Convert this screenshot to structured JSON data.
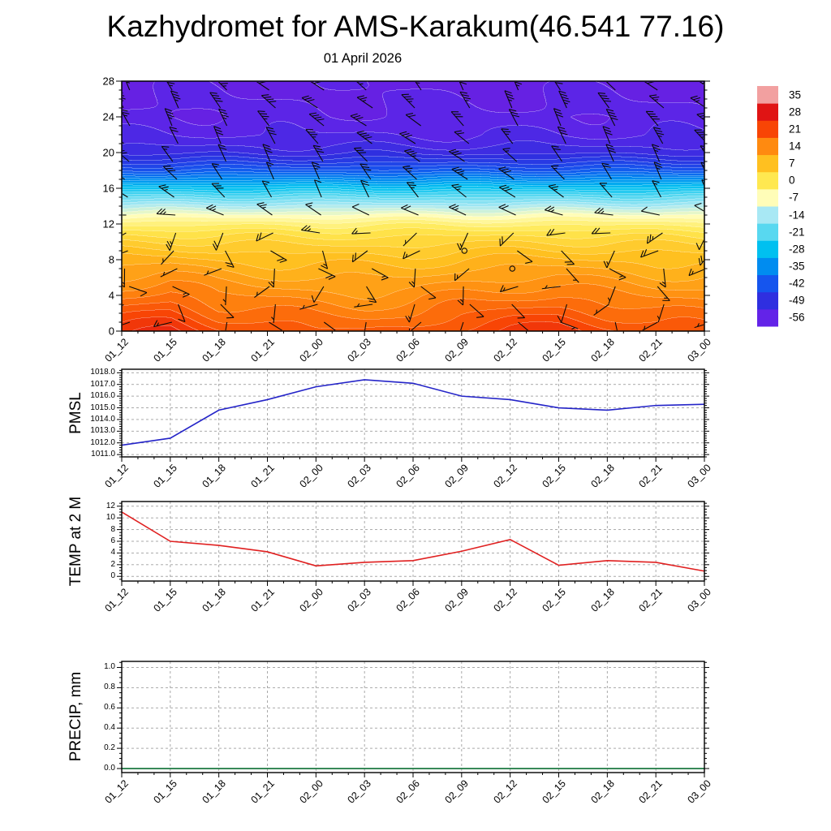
{
  "page": {
    "title": "Kazhydromet for AMS-Karakum(46.541 77.16)",
    "subtitle": "01 April 2026"
  },
  "time_labels": [
    "01_12",
    "01_15",
    "01_18",
    "01_21",
    "02_00",
    "02_03",
    "02_06",
    "02_09",
    "02_12",
    "02_15",
    "02_18",
    "02_21",
    "03_00"
  ],
  "chart_data": [
    {
      "type": "heatmap",
      "title": "01 April 2026",
      "description": "Time-height temperature cross-section with overlaid wind barbs and white contour lines",
      "x_categories": [
        "01_12",
        "01_15",
        "01_18",
        "01_21",
        "02_00",
        "02_03",
        "02_06",
        "02_09",
        "02_12",
        "02_15",
        "02_18",
        "02_21",
        "03_00"
      ],
      "ylim": [
        0,
        28
      ],
      "yticks": [
        0,
        4,
        8,
        12,
        16,
        20,
        24,
        28
      ],
      "units": "degC",
      "profile_heights": [
        0,
        1,
        2,
        3,
        4,
        5,
        6,
        7,
        8,
        9,
        10,
        11,
        12,
        13,
        14,
        15,
        16,
        17,
        18,
        19,
        20,
        21,
        22,
        24,
        26,
        28
      ],
      "profile_temps": [
        19.5,
        18,
        16.5,
        15,
        13.5,
        12,
        10.5,
        9,
        7.5,
        5.5,
        3.5,
        1,
        -2.5,
        -7.5,
        -13.5,
        -20,
        -27,
        -34.5,
        -41.5,
        -46.5,
        -50.5,
        -52.5,
        -54,
        -55.5,
        -56,
        -56.5
      ],
      "surface_anomaly": [
        3.5,
        5,
        1,
        0,
        -1,
        -1.5,
        -1,
        1.5,
        3,
        3.5,
        1.5,
        0,
        -0.5
      ],
      "contour_interval": 2,
      "wind_barbs": true,
      "calm_points": [
        [
          7,
          9
        ],
        [
          8,
          7
        ]
      ],
      "colorbar": {
        "tick_labels": [
          35,
          28,
          21,
          14,
          7,
          0,
          -7,
          -14,
          -21,
          -28,
          -35,
          -42,
          -49,
          -56
        ],
        "range": [
          -59.5,
          38.5
        ],
        "band_step": 7,
        "stops": [
          [
            -63,
            "#7a12c8"
          ],
          [
            -56,
            "#6323e8"
          ],
          [
            -49,
            "#2f2fe0"
          ],
          [
            -42,
            "#1555ee"
          ],
          [
            -35,
            "#008cf0"
          ],
          [
            -28,
            "#00c0f0"
          ],
          [
            -21,
            "#58d8f0"
          ],
          [
            -14,
            "#a8e8f4"
          ],
          [
            -7,
            "#fffdb8"
          ],
          [
            0,
            "#ffe850"
          ],
          [
            7,
            "#ffc020"
          ],
          [
            14,
            "#ff8a10"
          ],
          [
            21,
            "#f84505"
          ],
          [
            28,
            "#e01414"
          ],
          [
            35,
            "#f2a0a0"
          ],
          [
            42,
            "#f7d0d0"
          ]
        ]
      }
    },
    {
      "type": "line",
      "ylabel": "PMSL",
      "line_color": "#2424c8",
      "x": [
        "01_12",
        "01_15",
        "01_18",
        "01_21",
        "02_00",
        "02_03",
        "02_06",
        "02_09",
        "02_12",
        "02_15",
        "02_18",
        "02_21",
        "03_00"
      ],
      "values": [
        1011.8,
        1012.4,
        1014.8,
        1015.7,
        1016.8,
        1017.4,
        1017.1,
        1016.0,
        1015.7,
        1015.0,
        1014.8,
        1015.2,
        1015.3
      ],
      "ylim": [
        1010.8,
        1018.3
      ],
      "yticks": [
        1011,
        1012,
        1013,
        1014,
        1015,
        1016,
        1017,
        1018
      ],
      "ytick_decimals": 1,
      "minor_step": 0.2,
      "grid": true
    },
    {
      "type": "line",
      "ylabel": "TEMP at 2 M",
      "line_color": "#e02020",
      "x": [
        "01_12",
        "01_15",
        "01_18",
        "01_21",
        "02_00",
        "02_03",
        "02_06",
        "02_09",
        "02_12",
        "02_15",
        "02_18",
        "02_21",
        "03_00"
      ],
      "values": [
        11,
        6,
        5.3,
        4.2,
        1.8,
        2.4,
        2.7,
        4.3,
        6.3,
        1.9,
        2.7,
        2.4,
        0.9
      ],
      "ylim": [
        -0.8,
        12.8
      ],
      "yticks": [
        0,
        2,
        4,
        6,
        8,
        10,
        12
      ],
      "ytick_decimals": 0,
      "minor_step": 0.5,
      "grid": true
    },
    {
      "type": "line",
      "ylabel": "PRECIP, mm",
      "line_color": "#0a6e32",
      "x": [
        "01_12",
        "01_15",
        "01_18",
        "01_21",
        "02_00",
        "02_03",
        "02_06",
        "02_09",
        "02_12",
        "02_15",
        "02_18",
        "02_21",
        "03_00"
      ],
      "values": [
        0,
        0,
        0,
        0,
        0,
        0,
        0,
        0,
        0,
        0,
        0,
        0,
        0
      ],
      "ylim": [
        -0.04,
        1.06
      ],
      "yticks": [
        0,
        0.2,
        0.4,
        0.6,
        0.8,
        1.0
      ],
      "ytick_decimals": 1,
      "minor_step": 0.05,
      "grid": true
    }
  ]
}
